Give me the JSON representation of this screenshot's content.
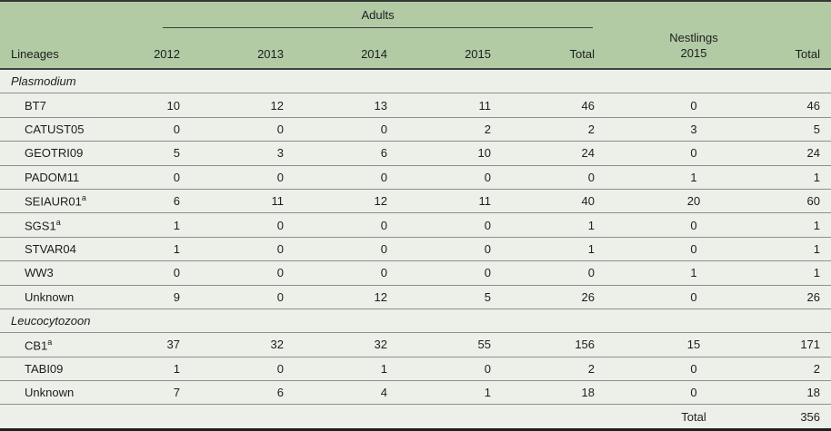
{
  "colors": {
    "header-bg": "#b2cba5",
    "row-bg": "#edf0e9",
    "separator": "#8f8f8f",
    "rule-dark": "#3e3e3e",
    "border-top": "#333833",
    "border-bottom": "#1e1e1e",
    "text": "#1d1d1d"
  },
  "table": {
    "header": {
      "lineages_label": "Lineages",
      "adults_label": "Adults",
      "adult_years": [
        "2012",
        "2013",
        "2014",
        "2015",
        "Total"
      ],
      "nestlings_label": "Nestlings",
      "nestlings_year": "2015",
      "total_label": "Total"
    },
    "sections": [
      {
        "name": "Plasmodium",
        "rows": [
          {
            "lineage": "BT7",
            "sup": "",
            "values": [
              "10",
              "12",
              "13",
              "11",
              "46",
              "0",
              "46"
            ]
          },
          {
            "lineage": "CATUST05",
            "sup": "",
            "values": [
              "0",
              "0",
              "0",
              "2",
              "2",
              "3",
              "5"
            ]
          },
          {
            "lineage": "GEOTRI09",
            "sup": "",
            "values": [
              "5",
              "3",
              "6",
              "10",
              "24",
              "0",
              "24"
            ]
          },
          {
            "lineage": "PADOM11",
            "sup": "",
            "values": [
              "0",
              "0",
              "0",
              "0",
              "0",
              "1",
              "1"
            ]
          },
          {
            "lineage": "SEIAUR01",
            "sup": "a",
            "values": [
              "6",
              "11",
              "12",
              "11",
              "40",
              "20",
              "60"
            ]
          },
          {
            "lineage": "SGS1",
            "sup": "a",
            "values": [
              "1",
              "0",
              "0",
              "0",
              "1",
              "0",
              "1"
            ]
          },
          {
            "lineage": "STVAR04",
            "sup": "",
            "values": [
              "1",
              "0",
              "0",
              "0",
              "1",
              "0",
              "1"
            ]
          },
          {
            "lineage": "WW3",
            "sup": "",
            "values": [
              "0",
              "0",
              "0",
              "0",
              "0",
              "1",
              "1"
            ]
          },
          {
            "lineage": "Unknown",
            "sup": "",
            "values": [
              "9",
              "0",
              "12",
              "5",
              "26",
              "0",
              "26"
            ]
          }
        ]
      },
      {
        "name": "Leucocytozoon",
        "rows": [
          {
            "lineage": "CB1",
            "sup": "a",
            "values": [
              "37",
              "32",
              "32",
              "55",
              "156",
              "15",
              "171"
            ]
          },
          {
            "lineage": "TABI09",
            "sup": "",
            "values": [
              "1",
              "0",
              "1",
              "0",
              "2",
              "0",
              "2"
            ]
          },
          {
            "lineage": "Unknown",
            "sup": "",
            "values": [
              "7",
              "6",
              "4",
              "1",
              "18",
              "0",
              "18"
            ]
          }
        ]
      }
    ],
    "footer": {
      "label": "Total",
      "value": "356"
    }
  }
}
